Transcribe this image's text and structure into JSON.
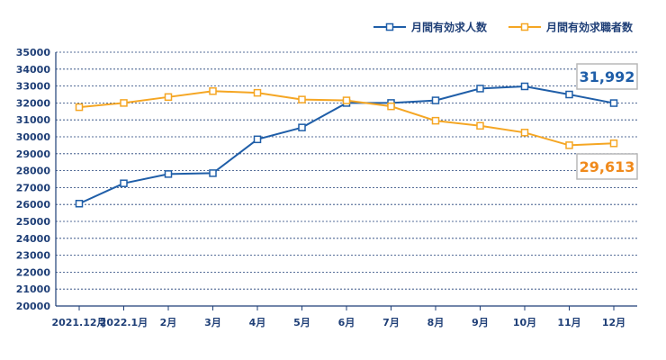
{
  "chart_data": {
    "type": "line",
    "categories": [
      "2021.12月",
      "2022.1月",
      "2月",
      "3月",
      "4月",
      "5月",
      "6月",
      "7月",
      "8月",
      "9月",
      "10月",
      "11月",
      "12月"
    ],
    "series": [
      {
        "name": "月間有効求人数",
        "color": "#1f5ea8",
        "values": [
          26050,
          27250,
          27800,
          27850,
          29850,
          30550,
          32000,
          32000,
          32150,
          32850,
          32980,
          32500,
          31992
        ],
        "callout": "31,992"
      },
      {
        "name": "月間有効求職者数",
        "color": "#f5a623",
        "values": [
          31750,
          32000,
          32350,
          32700,
          32600,
          32200,
          32150,
          31800,
          30950,
          30650,
          30250,
          29500,
          29613
        ],
        "callout": "29,613"
      }
    ],
    "ylim": [
      20000,
      35000
    ],
    "yticks": [
      20000,
      21000,
      22000,
      23000,
      24000,
      25000,
      26000,
      27000,
      28000,
      29000,
      30000,
      31000,
      32000,
      33000,
      34000,
      35000
    ],
    "grid": true,
    "legend_position": "top-right",
    "title": "",
    "xlabel": "",
    "ylabel": ""
  }
}
